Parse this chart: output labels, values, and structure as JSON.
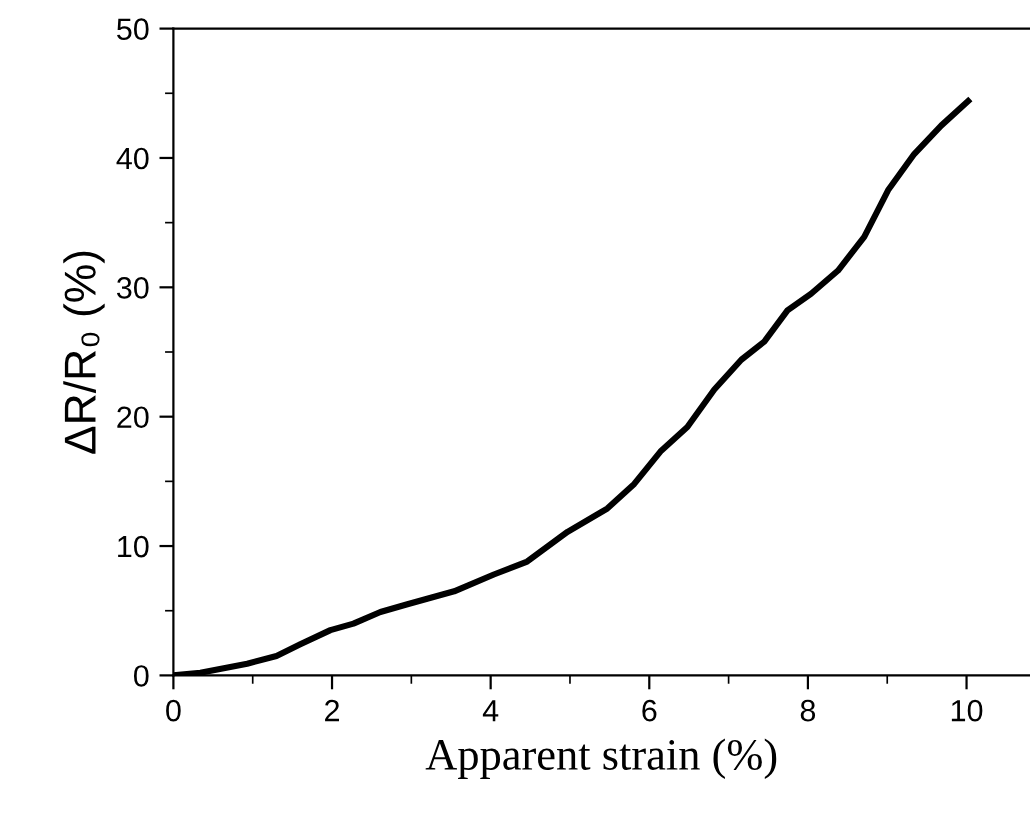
{
  "chart_data": {
    "type": "line",
    "xlabel": "Apparent strain (%)",
    "ylabel": "ΔR/R₀ (%)",
    "x": [
      0,
      0.34,
      0.93,
      1.3,
      1.6,
      1.98,
      2.27,
      2.61,
      2.95,
      3.54,
      4.04,
      4.46,
      4.97,
      5.47,
      5.81,
      6.14,
      6.48,
      6.82,
      7.16,
      7.45,
      7.74,
      8.04,
      8.38,
      8.71,
      9.01,
      9.34,
      9.68,
      10.02
    ],
    "series": [
      {
        "color": "#000000",
        "values": [
          0,
          0.2,
          0.9,
          1.5,
          2.4,
          3.5,
          4.0,
          4.9,
          5.5,
          6.5,
          7.8,
          8.8,
          11.1,
          12.9,
          14.8,
          17.3,
          19.2,
          22.1,
          24.4,
          25.8,
          28.2,
          29.5,
          31.3,
          33.9,
          37.5,
          40.3,
          42.5,
          44.4
        ]
      }
    ],
    "xlim": [
      0,
      10.8
    ],
    "ylim": [
      0,
      50
    ],
    "xticks": [
      0,
      2,
      4,
      6,
      8,
      10
    ],
    "yticks": [
      0,
      10,
      20,
      30,
      40,
      50
    ],
    "marker": "none",
    "line_style": "solid",
    "grid": false,
    "legend": false
  }
}
